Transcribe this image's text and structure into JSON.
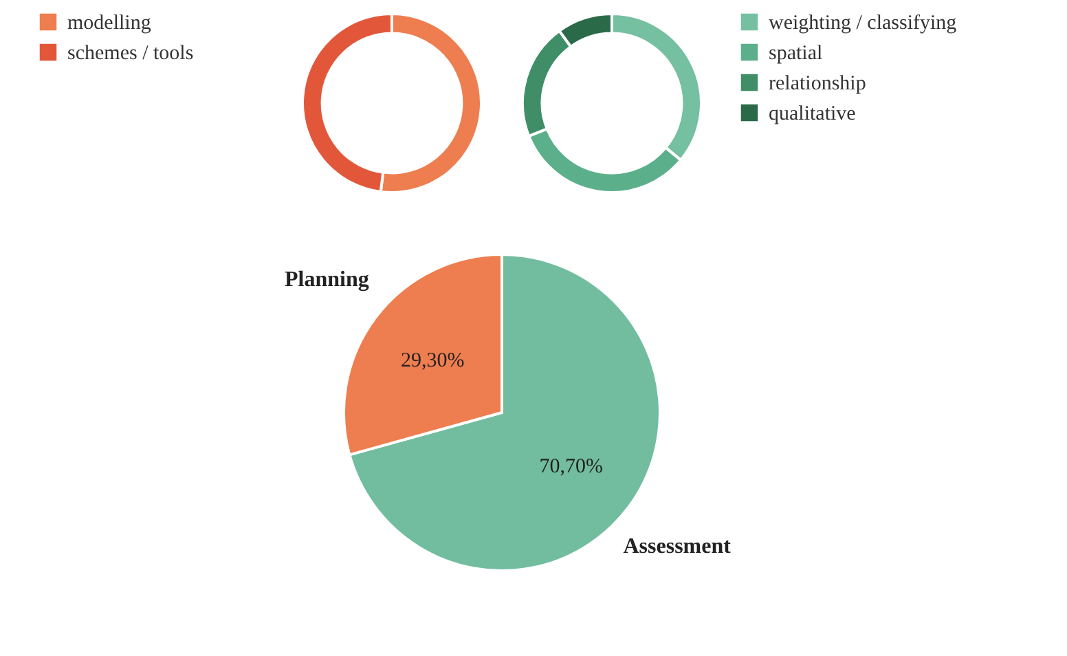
{
  "chart_data": [
    {
      "type": "donut",
      "categories": [
        "modelling",
        "schemes / tools"
      ],
      "values": [
        52,
        48
      ],
      "colors": [
        "#ee7d4f",
        "#e2573a"
      ],
      "legend": "left"
    },
    {
      "type": "donut",
      "categories": [
        "weighting / classifying",
        "spatial",
        "relationship",
        "qualitative"
      ],
      "values": [
        36,
        33,
        21,
        10
      ],
      "colors": [
        "#74c0a0",
        "#5bb08b",
        "#3f8e68",
        "#2b6a49"
      ],
      "legend": "right"
    },
    {
      "type": "pie",
      "categories": [
        "Assessment",
        "Planning"
      ],
      "values": [
        70.7,
        29.3
      ],
      "colors": [
        "#72bd9f",
        "#ee7d4f"
      ],
      "value_labels": [
        "70,70%",
        "29,30%"
      ]
    }
  ]
}
